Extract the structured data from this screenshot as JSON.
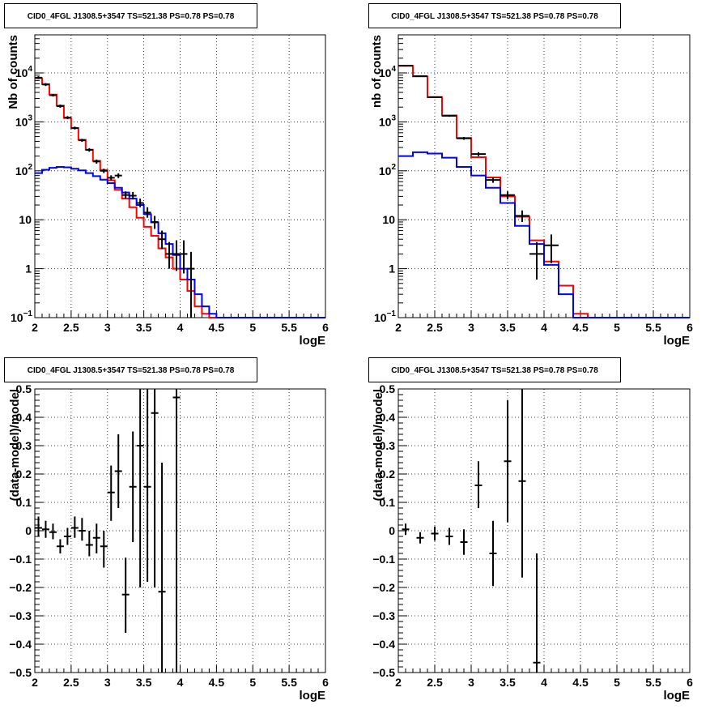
{
  "chart_data": [
    {
      "type": "line",
      "title": "CID0_4FGL J1308.5+3547 TS=521.38 PS=0.78 PS=0.78",
      "xlabel": "logE",
      "ylabel": "Nb of counts",
      "xlim": [
        2,
        6
      ],
      "ylim": [
        0.1,
        60000
      ],
      "y_scale": "log",
      "grid": true,
      "x_ticks": [
        "2",
        "2.5",
        "3",
        "3.5",
        "4",
        "4.5",
        "5",
        "5.5",
        "6"
      ],
      "y_ticks": [
        {
          "v": 0.1,
          "m": "10",
          "e": "−1"
        },
        {
          "v": 1,
          "m": "1",
          "e": ""
        },
        {
          "v": 10,
          "m": "10",
          "e": ""
        },
        {
          "v": 100,
          "m": "10",
          "e": "2"
        },
        {
          "v": 1000,
          "m": "10",
          "e": "3"
        },
        {
          "v": 10000,
          "m": "10",
          "e": "4"
        }
      ],
      "bin_edges": [
        2.0,
        2.1,
        2.2,
        2.3,
        2.4,
        2.5,
        2.6,
        2.7,
        2.8,
        2.9,
        3.0,
        3.1,
        3.2,
        3.3,
        3.4,
        3.5,
        3.6,
        3.7,
        3.8,
        3.9,
        4.0,
        4.1,
        4.2,
        4.3,
        4.4,
        4.5,
        4.6,
        4.7,
        4.8,
        4.9,
        5.0,
        5.1,
        5.2,
        5.3,
        5.4,
        5.5,
        5.6,
        5.7,
        5.8,
        5.9,
        6.0
      ],
      "series": [
        {
          "color": "#ff0000",
          "values": [
            7800,
            5900,
            3600,
            2150,
            1200,
            740,
            430,
            270,
            160,
            104,
            64,
            41,
            27,
            18,
            11,
            7.2,
            4.7,
            2.6,
            1.7,
            1.0,
            0.6,
            0.35,
            0.17,
            0.12,
            0.1,
            0.1,
            0.1,
            0.1,
            0.1,
            0.1,
            0.1,
            0.1,
            0.1,
            0.1,
            0.1,
            0.1,
            0.1,
            0.1,
            0.1,
            0.1
          ]
        },
        {
          "color": "#0000ff",
          "values": [
            90,
            105,
            115,
            120,
            118,
            110,
            102,
            90,
            78,
            66,
            56,
            45,
            36,
            27,
            20,
            13,
            8.8,
            5.3,
            3.2,
            1.9,
            1.0,
            0.6,
            0.3,
            0.17,
            0.12,
            0.1,
            0.1,
            0.1,
            0.1,
            0.1,
            0.1,
            0.1,
            0.1,
            0.1,
            0.1,
            0.1,
            0.1,
            0.1,
            0.1,
            0.1
          ]
        }
      ],
      "points": [
        {
          "x": 2.05,
          "y": 8000,
          "lo": 7500,
          "hi": 8600
        },
        {
          "x": 2.15,
          "y": 5800,
          "lo": 5400,
          "hi": 6200
        },
        {
          "x": 2.25,
          "y": 3500,
          "lo": 3300,
          "hi": 3700
        },
        {
          "x": 2.35,
          "y": 2100,
          "lo": 1950,
          "hi": 2250
        },
        {
          "x": 2.45,
          "y": 1220,
          "lo": 1130,
          "hi": 1310
        },
        {
          "x": 2.55,
          "y": 750,
          "lo": 700,
          "hi": 800
        },
        {
          "x": 2.65,
          "y": 420,
          "lo": 390,
          "hi": 450
        },
        {
          "x": 2.75,
          "y": 268,
          "lo": 245,
          "hi": 290
        },
        {
          "x": 2.85,
          "y": 155,
          "lo": 140,
          "hi": 170
        },
        {
          "x": 2.95,
          "y": 100,
          "lo": 90,
          "hi": 110
        },
        {
          "x": 3.05,
          "y": 72,
          "lo": 64,
          "hi": 81
        },
        {
          "x": 3.15,
          "y": 80,
          "lo": 71,
          "hi": 89
        },
        {
          "x": 3.25,
          "y": 32,
          "lo": 27,
          "hi": 38
        },
        {
          "x": 3.35,
          "y": 31,
          "lo": 26,
          "hi": 37
        },
        {
          "x": 3.45,
          "y": 22,
          "lo": 18,
          "hi": 27
        },
        {
          "x": 3.55,
          "y": 14,
          "lo": 11,
          "hi": 18
        },
        {
          "x": 3.65,
          "y": 9,
          "lo": 6.5,
          "hi": 12
        },
        {
          "x": 3.75,
          "y": 4,
          "lo": 2.5,
          "hi": 6
        },
        {
          "x": 3.85,
          "y": 2,
          "lo": 1,
          "hi": 3.5
        },
        {
          "x": 3.95,
          "y": 2,
          "lo": 0.9,
          "hi": 3.8
        },
        {
          "x": 4.05,
          "y": 2,
          "lo": 0.8,
          "hi": 3.8
        },
        {
          "x": 4.15,
          "y": 1,
          "lo": 0.1,
          "hi": 2.2
        }
      ]
    },
    {
      "type": "line",
      "title": "CID0_4FGL J1308.5+3547 TS=521.38 PS=0.78 PS=0.78",
      "xlabel": "logE",
      "ylabel": "nb of counts",
      "xlim": [
        2,
        6
      ],
      "ylim": [
        0.1,
        60000
      ],
      "y_scale": "log",
      "grid": true,
      "x_ticks": [
        "2",
        "2.5",
        "3",
        "3.5",
        "4",
        "4.5",
        "5",
        "5.5",
        "6"
      ],
      "y_ticks": [
        {
          "v": 0.1,
          "m": "10",
          "e": "−1"
        },
        {
          "v": 1,
          "m": "1",
          "e": ""
        },
        {
          "v": 10,
          "m": "10",
          "e": ""
        },
        {
          "v": 100,
          "m": "10",
          "e": "2"
        },
        {
          "v": 1000,
          "m": "10",
          "e": "3"
        },
        {
          "v": 10000,
          "m": "10",
          "e": "4"
        }
      ],
      "bin_edges": [
        2.0,
        2.2,
        2.4,
        2.6,
        2.8,
        3.0,
        3.2,
        3.4,
        3.6,
        3.8,
        4.0,
        4.2,
        4.4,
        4.6,
        4.8,
        5.0,
        5.2,
        5.4,
        5.6,
        5.8,
        6.0
      ],
      "series": [
        {
          "color": "#ff0000",
          "values": [
            14000,
            8500,
            3200,
            1350,
            470,
            190,
            73,
            30,
            11.5,
            3.8,
            1.4,
            0.45,
            0.12,
            0.1,
            0.1,
            0.1,
            0.1,
            0.1,
            0.1,
            0.1
          ]
        },
        {
          "color": "#0000ff",
          "values": [
            200,
            240,
            225,
            185,
            120,
            80,
            45,
            22,
            7.5,
            3.2,
            1.2,
            0.3,
            0.1,
            0.1,
            0.1,
            0.1,
            0.1,
            0.1,
            0.1,
            0.1
          ]
        }
      ],
      "points": [
        {
          "x": 2.1,
          "y": 14000,
          "lo": 13500,
          "hi": 14500
        },
        {
          "x": 2.3,
          "y": 8600,
          "lo": 8300,
          "hi": 8900
        },
        {
          "x": 2.5,
          "y": 3200,
          "lo": 3100,
          "hi": 3300
        },
        {
          "x": 2.7,
          "y": 1330,
          "lo": 1270,
          "hi": 1390
        },
        {
          "x": 2.9,
          "y": 460,
          "lo": 430,
          "hi": 490
        },
        {
          "x": 3.1,
          "y": 220,
          "lo": 200,
          "hi": 240
        },
        {
          "x": 3.3,
          "y": 65,
          "lo": 57,
          "hi": 73
        },
        {
          "x": 3.5,
          "y": 32,
          "lo": 26,
          "hi": 38
        },
        {
          "x": 3.7,
          "y": 12,
          "lo": 9,
          "hi": 15.5
        },
        {
          "x": 3.9,
          "y": 2,
          "lo": 0.6,
          "hi": 3.5
        },
        {
          "x": 4.1,
          "y": 3,
          "lo": 1.3,
          "hi": 5
        }
      ]
    },
    {
      "type": "scatter",
      "title": "CID0_4FGL J1308.5+3547 TS=521.38 PS=0.78 PS=0.78",
      "xlabel": "logE",
      "ylabel": "(data-model)/model",
      "xlim": [
        2,
        6
      ],
      "ylim": [
        -0.5,
        0.5
      ],
      "grid": true,
      "x_ticks": [
        "2",
        "2.5",
        "3",
        "3.5",
        "4",
        "4.5",
        "5",
        "5.5",
        "6"
      ],
      "y_ticks": [
        "−0.5",
        "−0.4",
        "−0.3",
        "−0.2",
        "−0.1",
        "0",
        "0.1",
        "0.2",
        "0.3",
        "0.4",
        "0.5"
      ],
      "points": [
        {
          "x": 2.05,
          "y": 0.01,
          "lo": -0.02,
          "hi": 0.05
        },
        {
          "x": 2.15,
          "y": 0.005,
          "lo": -0.025,
          "hi": 0.035
        },
        {
          "x": 2.25,
          "y": -0.005,
          "lo": -0.03,
          "hi": 0.025
        },
        {
          "x": 2.35,
          "y": -0.055,
          "lo": -0.08,
          "hi": -0.03
        },
        {
          "x": 2.45,
          "y": -0.02,
          "lo": -0.05,
          "hi": 0.01
        },
        {
          "x": 2.55,
          "y": 0.01,
          "lo": -0.025,
          "hi": 0.05
        },
        {
          "x": 2.65,
          "y": 0.0,
          "lo": -0.035,
          "hi": 0.045
        },
        {
          "x": 2.75,
          "y": -0.05,
          "lo": -0.09,
          "hi": 0.0
        },
        {
          "x": 2.85,
          "y": -0.025,
          "lo": -0.08,
          "hi": 0.025
        },
        {
          "x": 2.95,
          "y": -0.055,
          "lo": -0.13,
          "hi": 0.0
        },
        {
          "x": 3.05,
          "y": 0.135,
          "lo": 0.035,
          "hi": 0.23
        },
        {
          "x": 3.15,
          "y": 0.21,
          "lo": 0.08,
          "hi": 0.34
        },
        {
          "x": 3.25,
          "y": -0.225,
          "lo": -0.36,
          "hi": -0.095
        },
        {
          "x": 3.35,
          "y": 0.155,
          "lo": -0.04,
          "hi": 0.35
        },
        {
          "x": 3.45,
          "y": 0.3,
          "lo": -0.2,
          "hi": 0.5
        },
        {
          "x": 3.55,
          "y": 0.155,
          "lo": -0.18,
          "hi": 0.5
        },
        {
          "x": 3.65,
          "y": 0.415,
          "lo": -0.2,
          "hi": 0.5
        },
        {
          "x": 3.75,
          "y": -0.215,
          "lo": -0.5,
          "hi": 0.24
        },
        {
          "x": 3.95,
          "y": 0.47,
          "lo": -0.5,
          "hi": 0.5
        }
      ]
    },
    {
      "type": "scatter",
      "title": "CID0_4FGL J1308.5+3547 TS=521.38 PS=0.78 PS=0.78",
      "xlabel": "logE",
      "ylabel": "(data-model)/model",
      "xlim": [
        2,
        6
      ],
      "ylim": [
        -0.5,
        0.5
      ],
      "grid": true,
      "x_ticks": [
        "2",
        "2.5",
        "3",
        "3.5",
        "4",
        "4.5",
        "5",
        "5.5",
        "6"
      ],
      "y_ticks": [
        "−0.5",
        "−0.4",
        "−0.3",
        "−0.2",
        "−0.1",
        "0",
        "0.1",
        "0.2",
        "0.3",
        "0.4",
        "0.5"
      ],
      "points": [
        {
          "x": 2.1,
          "y": 0.005,
          "lo": -0.015,
          "hi": 0.025
        },
        {
          "x": 2.3,
          "y": -0.025,
          "lo": -0.045,
          "hi": -0.005
        },
        {
          "x": 2.5,
          "y": -0.01,
          "lo": -0.035,
          "hi": 0.015
        },
        {
          "x": 2.7,
          "y": -0.02,
          "lo": -0.05,
          "hi": 0.01
        },
        {
          "x": 2.9,
          "y": -0.04,
          "lo": -0.085,
          "hi": 0.005
        },
        {
          "x": 3.1,
          "y": 0.16,
          "lo": 0.08,
          "hi": 0.245
        },
        {
          "x": 3.3,
          "y": -0.08,
          "lo": -0.195,
          "hi": 0.035
        },
        {
          "x": 3.5,
          "y": 0.245,
          "lo": 0.03,
          "hi": 0.46
        },
        {
          "x": 3.7,
          "y": 0.175,
          "lo": -0.165,
          "hi": 0.5
        },
        {
          "x": 3.9,
          "y": -0.465,
          "lo": -0.5,
          "hi": -0.08
        }
      ]
    }
  ]
}
